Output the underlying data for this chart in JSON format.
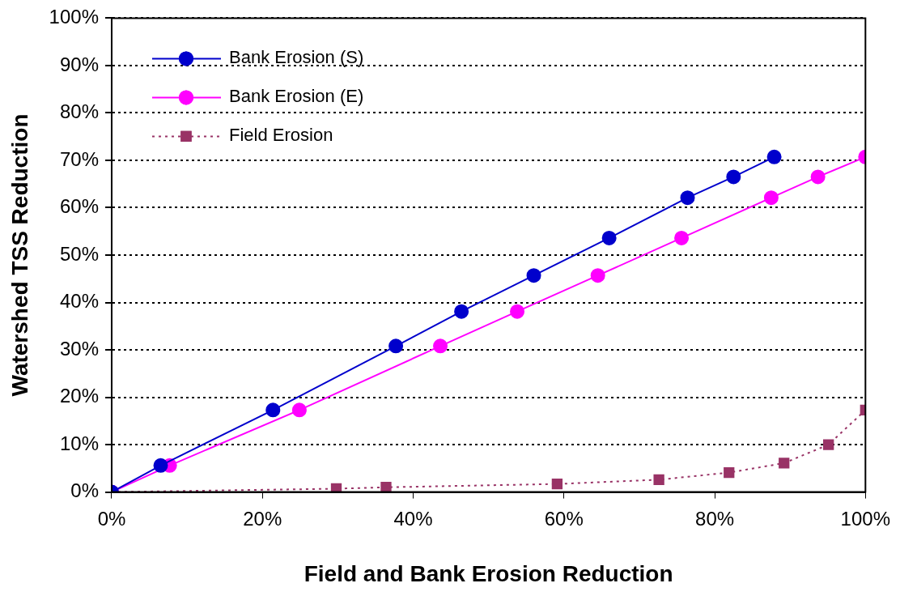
{
  "chart_data": {
    "type": "line",
    "xlabel": "Field and Bank Erosion Reduction",
    "ylabel": "Watershed TSS Reduction",
    "xlim": [
      0,
      100
    ],
    "ylim": [
      0,
      100
    ],
    "xticks": [
      {
        "value": 0,
        "label": "0%"
      },
      {
        "value": 20,
        "label": "20%"
      },
      {
        "value": 40,
        "label": "40%"
      },
      {
        "value": 60,
        "label": "60%"
      },
      {
        "value": 80,
        "label": "80%"
      },
      {
        "value": 100,
        "label": "100%"
      }
    ],
    "yticks": [
      {
        "value": 0,
        "label": "0%"
      },
      {
        "value": 10,
        "label": "10%"
      },
      {
        "value": 20,
        "label": "20%"
      },
      {
        "value": 30,
        "label": "30%"
      },
      {
        "value": 40,
        "label": "40%"
      },
      {
        "value": 50,
        "label": "50%"
      },
      {
        "value": 60,
        "label": "60%"
      },
      {
        "value": 70,
        "label": "70%"
      },
      {
        "value": 80,
        "label": "80%"
      },
      {
        "value": 90,
        "label": "90%"
      },
      {
        "value": 100,
        "label": "100%"
      }
    ],
    "grid": "y",
    "legend": "top left",
    "series": [
      {
        "name": "Bank Erosion (S)",
        "color": "#0000cc",
        "marker": "circle",
        "line_style": "solid",
        "x": [
          0,
          6.5,
          21.4,
          37.7,
          46.4,
          56,
          66,
          76.4,
          82.5,
          87.9
        ],
        "values": [
          0,
          5.6,
          17.3,
          30.8,
          38.1,
          45.7,
          53.6,
          62.1,
          66.5,
          70.7
        ]
      },
      {
        "name": "Bank Erosion (E)",
        "color": "#ff00ff",
        "marker": "circle",
        "line_style": "solid",
        "x": [
          0,
          7.7,
          24.9,
          43.6,
          53.8,
          64.5,
          75.6,
          87.5,
          93.7,
          100
        ],
        "values": [
          0,
          5.6,
          17.3,
          30.8,
          38.1,
          45.7,
          53.6,
          62.1,
          66.5,
          70.7
        ]
      },
      {
        "name": "Field Erosion",
        "color": "#993366",
        "marker": "square",
        "line_style": "dotted",
        "x": [
          0,
          29.8,
          36.4,
          59.1,
          72.6,
          81.9,
          89.2,
          95.1,
          100
        ],
        "values": [
          0,
          0.7,
          1,
          1.7,
          2.6,
          4.1,
          6.1,
          10,
          17.3
        ]
      }
    ]
  }
}
